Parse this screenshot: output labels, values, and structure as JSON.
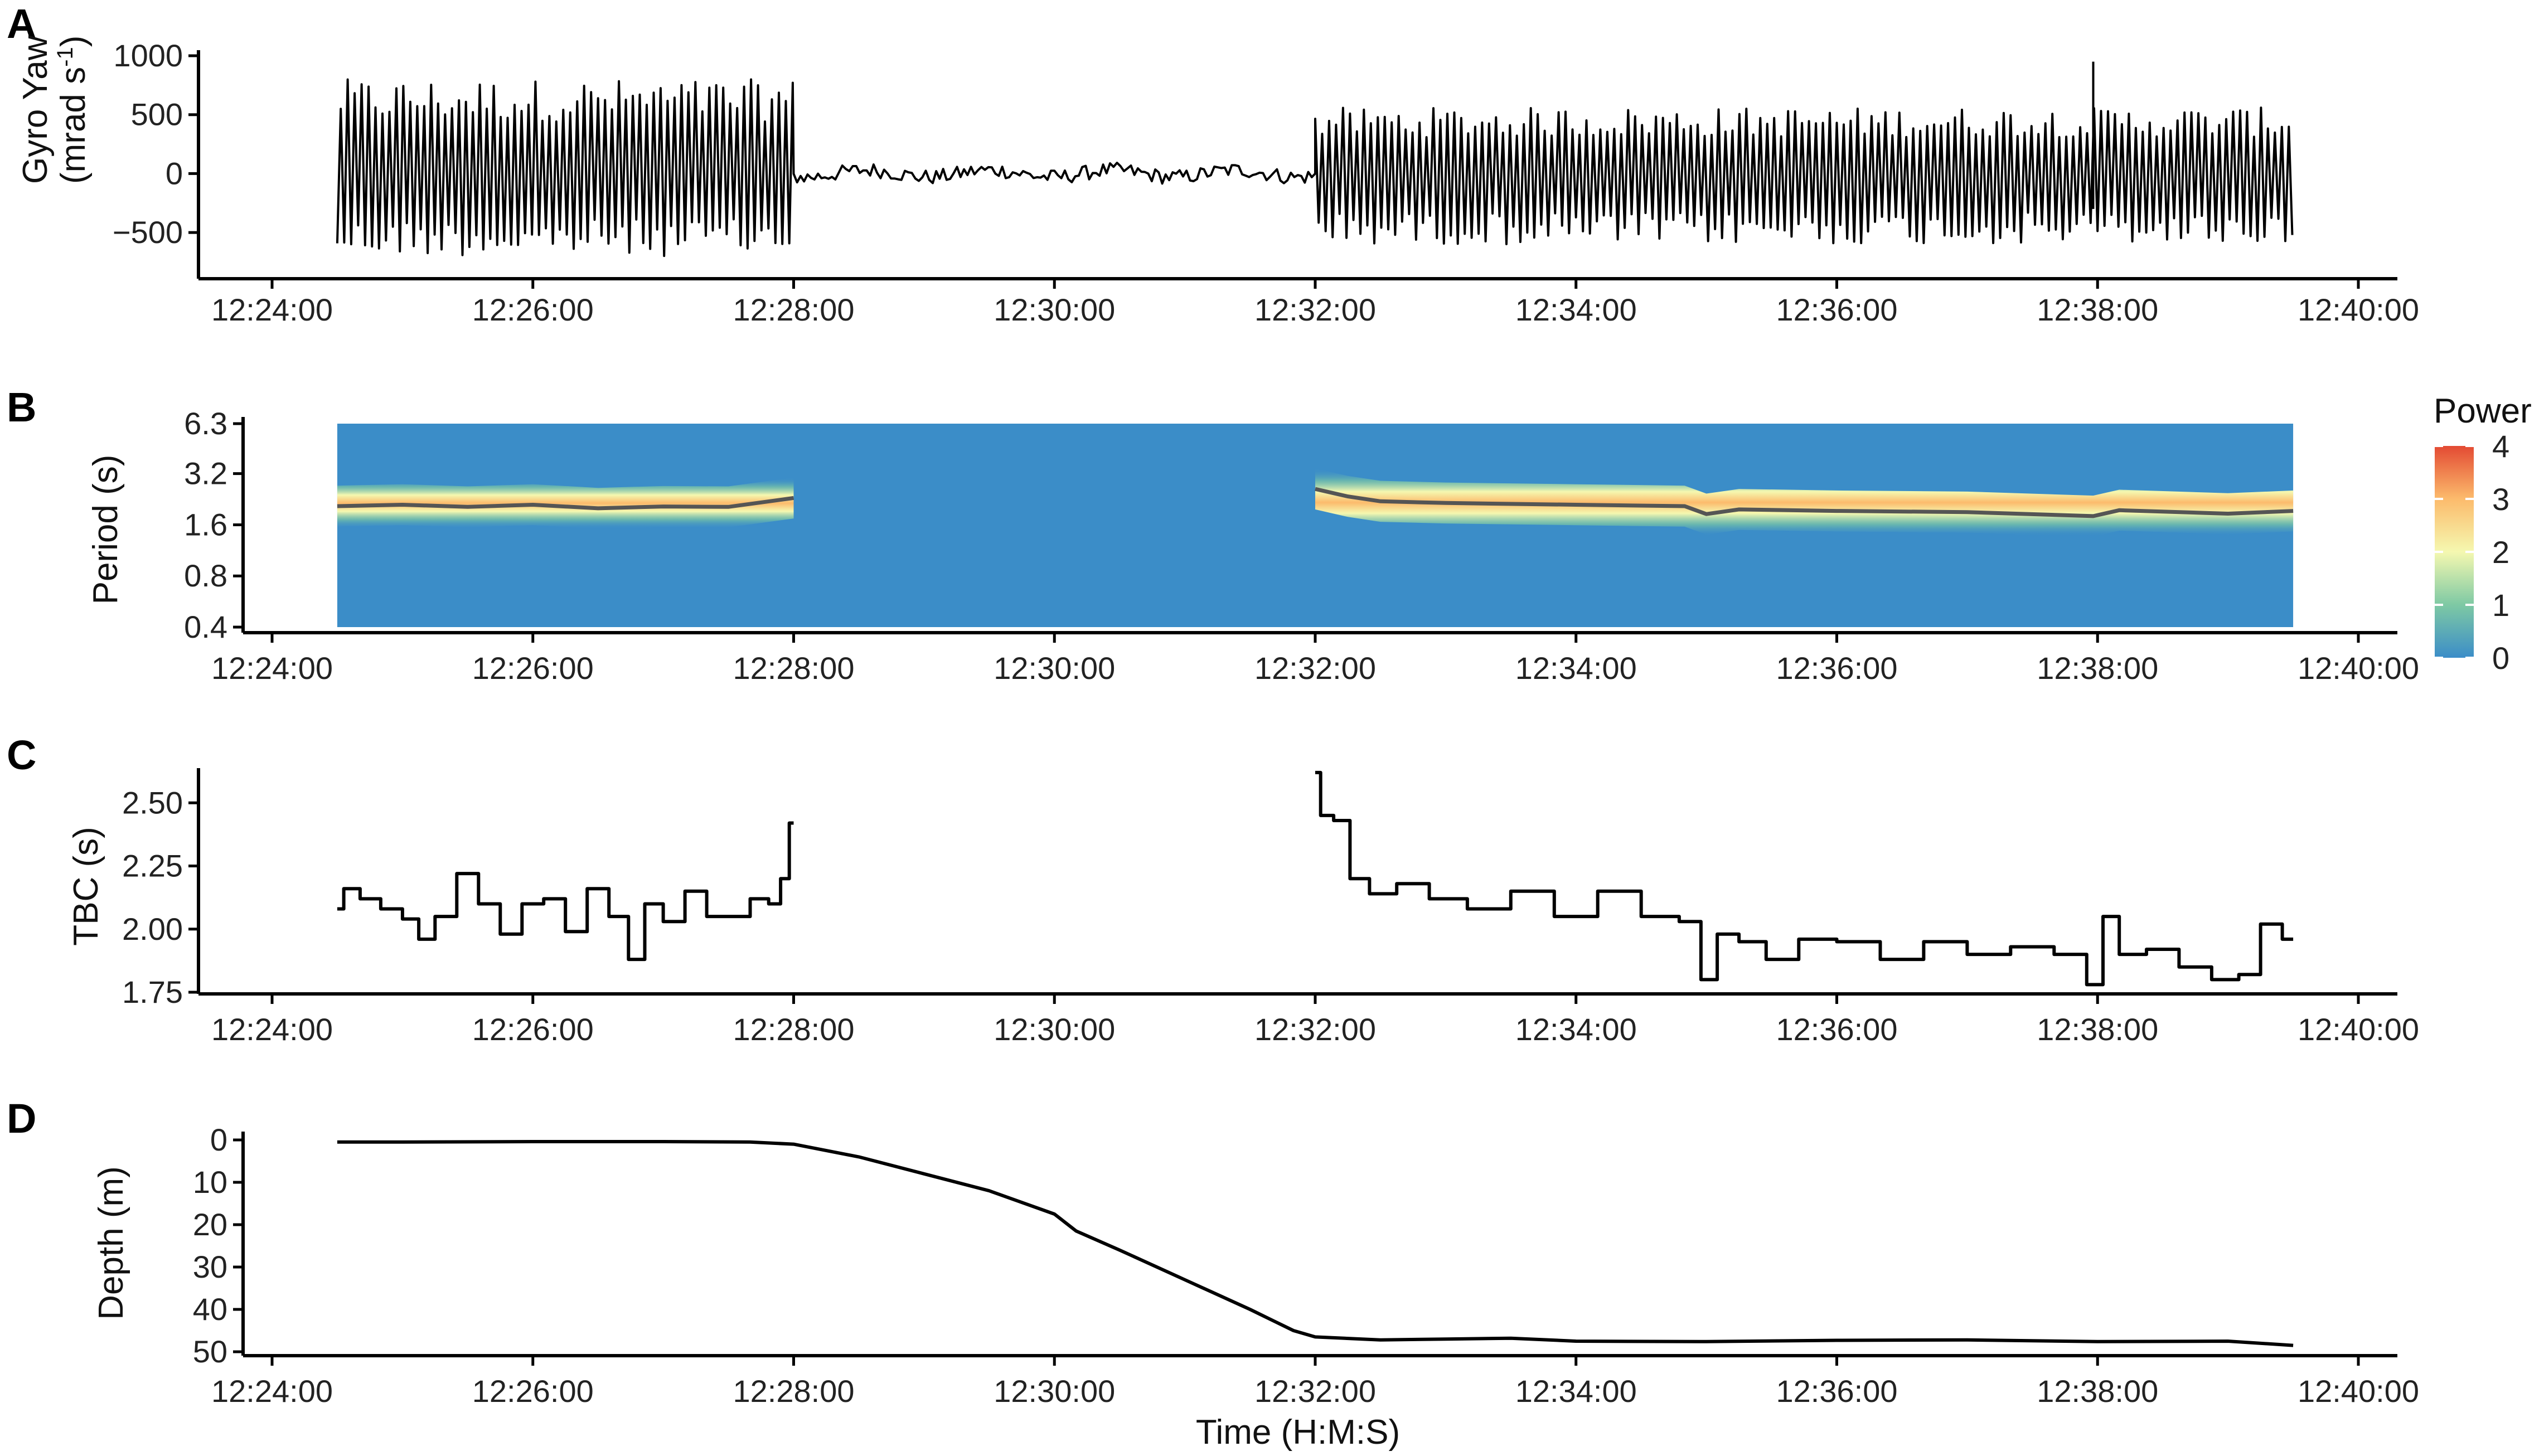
{
  "xlabel": "Time (H:M:S)",
  "colors": {
    "line": "#000000",
    "ridge": "#555555",
    "power_low": "#3b8dc8",
    "power_high": "#e34a33"
  },
  "chart_data": [
    {
      "panel": "A",
      "type": "line",
      "ylabel_main": "Gyro Yaw",
      "ylabel_unit": "(mrad s",
      "ylabel_sup": "-1",
      "ylabel_close": ")",
      "ylim": [
        -750,
        1000
      ],
      "yticks": [
        1000,
        500,
        0,
        -500
      ],
      "ytick_labels": [
        "1000",
        "500",
        "0",
        "−500"
      ],
      "x_range": [
        "12:24:30",
        "12:39:30"
      ],
      "xlim": [
        "12:24:00",
        "12:40:00"
      ],
      "xticks": [
        "12:24:00",
        "12:26:00",
        "12:28:00",
        "12:30:00",
        "12:32:00",
        "12:34:00",
        "12:36:00",
        "12:38:00",
        "12:40:00"
      ],
      "segments": [
        {
          "start": "12:24:30",
          "end": "12:28:00",
          "behaviour": "oscillating",
          "amplitude_min": -700,
          "amplitude_max": 800
        },
        {
          "start": "12:28:00",
          "end": "12:32:00",
          "behaviour": "quiet",
          "amplitude_min": -100,
          "amplitude_max": 130
        },
        {
          "start": "12:32:00",
          "end": "12:39:30",
          "behaviour": "oscillating",
          "amplitude_min": -600,
          "amplitude_max": 560
        }
      ],
      "spikes": [
        {
          "t": "12:37:58",
          "y": 950
        }
      ]
    },
    {
      "panel": "B",
      "type": "heatmap",
      "ylabel": "Period (s)",
      "yscale": "log2",
      "ylim": [
        0.4,
        6.3
      ],
      "yticks": [
        6.3,
        3.2,
        1.6,
        0.8,
        0.4
      ],
      "ytick_labels": [
        "6.3",
        "3.2",
        "1.6",
        "0.8",
        "0.4"
      ],
      "xlim": [
        "12:24:00",
        "12:40:00"
      ],
      "xticks": [
        "12:24:00",
        "12:26:00",
        "12:28:00",
        "12:30:00",
        "12:32:00",
        "12:34:00",
        "12:36:00",
        "12:38:00",
        "12:40:00"
      ],
      "x_range": [
        "12:24:30",
        "12:39:30"
      ],
      "legend": {
        "title": "Power",
        "min": 0,
        "max": 4,
        "ticks": [
          "4",
          "3",
          "2",
          "1",
          "0"
        ],
        "position": "right"
      },
      "ridge_segments": [
        {
          "start": "12:24:30",
          "end": "12:28:00"
        },
        {
          "start": "12:32:00",
          "end": "12:39:30"
        }
      ],
      "ridge_period": [
        [
          "12:24:30",
          2.06
        ],
        [
          "12:25:00",
          2.1
        ],
        [
          "12:25:30",
          2.04
        ],
        [
          "12:26:00",
          2.1
        ],
        [
          "12:26:30",
          2.0
        ],
        [
          "12:27:00",
          2.05
        ],
        [
          "12:27:30",
          2.04
        ],
        [
          "12:28:00",
          2.3
        ],
        [
          "12:32:00",
          2.6
        ],
        [
          "12:32:15",
          2.35
        ],
        [
          "12:32:30",
          2.2
        ],
        [
          "12:33:00",
          2.15
        ],
        [
          "12:34:00",
          2.1
        ],
        [
          "12:34:50",
          2.06
        ],
        [
          "12:35:00",
          1.85
        ],
        [
          "12:35:15",
          1.97
        ],
        [
          "12:36:00",
          1.93
        ],
        [
          "12:37:00",
          1.9
        ],
        [
          "12:37:58",
          1.8
        ],
        [
          "12:38:10",
          1.95
        ],
        [
          "12:39:00",
          1.86
        ],
        [
          "12:39:30",
          1.93
        ]
      ]
    },
    {
      "panel": "C",
      "type": "line",
      "ylabel": "TBC (s)",
      "ylim": [
        1.75,
        2.6
      ],
      "yticks": [
        2.5,
        2.25,
        2.0,
        1.75
      ],
      "ytick_labels": [
        "2.50",
        "2.25",
        "2.00",
        "1.75"
      ],
      "xlim": [
        "12:24:00",
        "12:40:00"
      ],
      "xticks": [
        "12:24:00",
        "12:26:00",
        "12:28:00",
        "12:30:00",
        "12:32:00",
        "12:34:00",
        "12:36:00",
        "12:38:00",
        "12:40:00"
      ],
      "series": [
        {
          "points": [
            [
              "12:24:30",
              2.08
            ],
            [
              "12:24:36",
              2.16
            ],
            [
              "12:24:45",
              2.12
            ],
            [
              "12:24:55",
              2.08
            ],
            [
              "12:25:05",
              2.04
            ],
            [
              "12:25:10",
              1.96
            ],
            [
              "12:25:20",
              2.05
            ],
            [
              "12:25:30",
              2.22
            ],
            [
              "12:25:40",
              2.1
            ],
            [
              "12:25:50",
              1.98
            ],
            [
              "12:26:00",
              2.1
            ],
            [
              "12:26:10",
              2.12
            ],
            [
              "12:26:20",
              1.99
            ],
            [
              "12:26:30",
              2.16
            ],
            [
              "12:26:40",
              2.05
            ],
            [
              "12:26:48",
              1.88
            ],
            [
              "12:26:55",
              2.1
            ],
            [
              "12:27:05",
              2.03
            ],
            [
              "12:27:15",
              2.15
            ],
            [
              "12:27:25",
              2.05
            ],
            [
              "12:27:35",
              2.05
            ],
            [
              "12:27:45",
              2.12
            ],
            [
              "12:27:52",
              2.1
            ],
            [
              "12:27:56",
              2.2
            ],
            [
              "12:28:00",
              2.42
            ]
          ]
        },
        {
          "points": [
            [
              "12:32:00",
              2.62
            ],
            [
              "12:32:05",
              2.45
            ],
            [
              "12:32:12",
              2.43
            ],
            [
              "12:32:20",
              2.2
            ],
            [
              "12:32:30",
              2.14
            ],
            [
              "12:32:45",
              2.18
            ],
            [
              "12:33:00",
              2.12
            ],
            [
              "12:33:20",
              2.08
            ],
            [
              "12:33:40",
              2.15
            ],
            [
              "12:34:00",
              2.05
            ],
            [
              "12:34:20",
              2.15
            ],
            [
              "12:34:40",
              2.05
            ],
            [
              "12:34:55",
              2.03
            ],
            [
              "12:35:00",
              1.8
            ],
            [
              "12:35:10",
              1.98
            ],
            [
              "12:35:20",
              1.95
            ],
            [
              "12:35:35",
              1.88
            ],
            [
              "12:35:50",
              1.96
            ],
            [
              "12:36:10",
              1.95
            ],
            [
              "12:36:30",
              1.88
            ],
            [
              "12:36:50",
              1.95
            ],
            [
              "12:37:10",
              1.9
            ],
            [
              "12:37:30",
              1.93
            ],
            [
              "12:37:50",
              1.9
            ],
            [
              "12:38:00",
              1.78
            ],
            [
              "12:38:05",
              2.05
            ],
            [
              "12:38:15",
              1.9
            ],
            [
              "12:38:30",
              1.92
            ],
            [
              "12:38:45",
              1.85
            ],
            [
              "12:39:00",
              1.8
            ],
            [
              "12:39:10",
              1.82
            ],
            [
              "12:39:20",
              2.02
            ],
            [
              "12:39:30",
              1.96
            ]
          ]
        }
      ]
    },
    {
      "panel": "D",
      "type": "line",
      "ylabel": "Depth (m)",
      "y_reversed": true,
      "ylim": [
        0,
        50
      ],
      "yticks": [
        0,
        10,
        20,
        30,
        40,
        50
      ],
      "ytick_labels": [
        "0",
        "10",
        "20",
        "30",
        "40",
        "50"
      ],
      "xlim": [
        "12:24:00",
        "12:40:00"
      ],
      "xticks": [
        "12:24:00",
        "12:26:00",
        "12:28:00",
        "12:30:00",
        "12:32:00",
        "12:34:00",
        "12:36:00",
        "12:38:00",
        "12:40:00"
      ],
      "xtick_labels": [
        "12:24:00",
        "12:26:00",
        "12:28:00",
        "12:30:00",
        "12:32:00",
        "12:34:00",
        "12:36:00",
        "12:38:00",
        "12:40:00"
      ],
      "series": [
        {
          "points": [
            [
              "12:24:30",
              0.5
            ],
            [
              "12:25:00",
              0.5
            ],
            [
              "12:26:00",
              0.4
            ],
            [
              "12:27:00",
              0.4
            ],
            [
              "12:27:40",
              0.5
            ],
            [
              "12:28:00",
              1.0
            ],
            [
              "12:28:30",
              4.0
            ],
            [
              "12:29:00",
              8.0
            ],
            [
              "12:29:30",
              12.0
            ],
            [
              "12:30:00",
              17.5
            ],
            [
              "12:30:10",
              21.5
            ],
            [
              "12:30:30",
              26.0
            ],
            [
              "12:31:00",
              33.0
            ],
            [
              "12:31:30",
              40.0
            ],
            [
              "12:31:50",
              45.0
            ],
            [
              "12:32:00",
              46.5
            ],
            [
              "12:32:30",
              47.2
            ],
            [
              "12:33:00",
              47.0
            ],
            [
              "12:33:30",
              46.8
            ],
            [
              "12:34:00",
              47.5
            ],
            [
              "12:35:00",
              47.6
            ],
            [
              "12:36:00",
              47.3
            ],
            [
              "12:37:00",
              47.2
            ],
            [
              "12:38:00",
              47.6
            ],
            [
              "12:39:00",
              47.5
            ],
            [
              "12:39:30",
              48.5
            ]
          ]
        }
      ]
    }
  ]
}
